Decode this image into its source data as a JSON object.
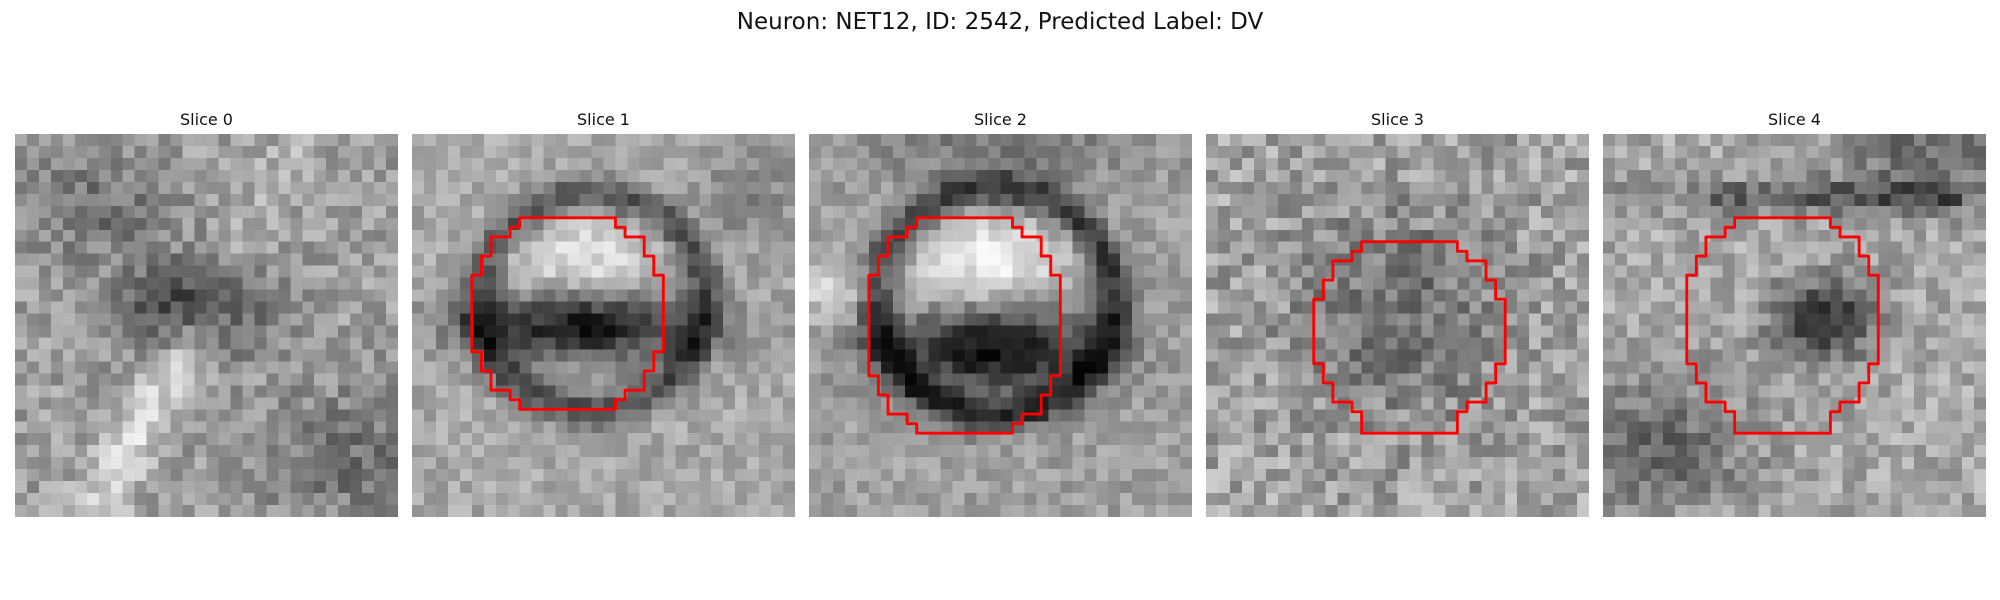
{
  "figure": {
    "title": "Neuron: NET12, ID: 2542, Predicted Label: DV",
    "contour_color": "#ff0000",
    "colormap": "gray"
  },
  "panels": [
    {
      "title": "Slice 0",
      "image": "slice 0: blurred dark blob in center, diagonal bright band lower left, no contour",
      "has_contour": false
    },
    {
      "title": "Slice 1",
      "image": "slice 1: ring-shaped cell with bright upper half and dark lower half, red octagonal contour",
      "has_contour": true
    },
    {
      "title": "Slice 2",
      "image": "slice 2: ring-shaped cell with bright upper cap and dark lower half, red octagonal contour",
      "has_contour": true
    },
    {
      "title": "Slice 3",
      "image": "slice 3: noisy texture with darker center region, red octagonal contour",
      "has_contour": true
    },
    {
      "title": "Slice 4",
      "image": "slice 4: dark spot right of center, dark band at top, red octagonal contour",
      "has_contour": true
    }
  ]
}
